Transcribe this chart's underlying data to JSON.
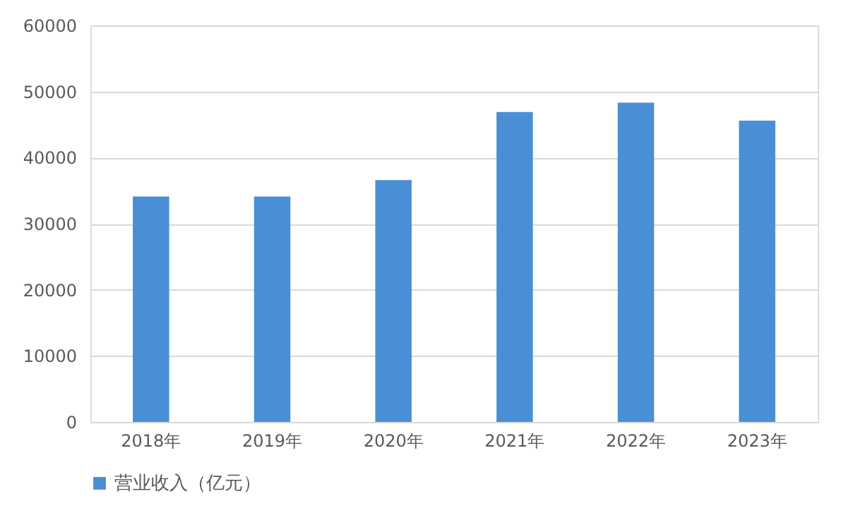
{
  "chart_data": {
    "type": "bar",
    "categories": [
      "2018年",
      "2019年",
      "2020年",
      "2021年",
      "2022年",
      "2023年"
    ],
    "series": [
      {
        "name": "营业收入（亿元）",
        "color": "#4a8fd6",
        "values": [
          34100,
          34100,
          36600,
          46900,
          48300,
          45600
        ]
      }
    ],
    "ylim": [
      0,
      60000
    ],
    "yticks": [
      0,
      10000,
      20000,
      30000,
      40000,
      50000,
      60000
    ],
    "grid": "y",
    "legend": "bottom"
  }
}
